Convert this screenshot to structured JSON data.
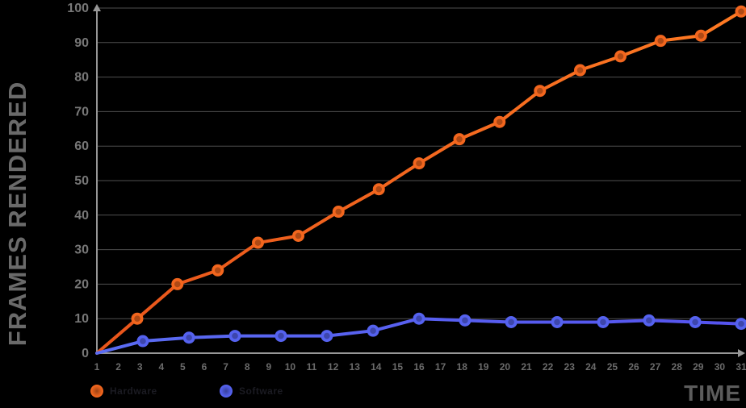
{
  "axes": {
    "y_title": "FRAMES RENDERED",
    "x_title": "TIME"
  },
  "legend": {
    "items": [
      {
        "label": "Hardware",
        "dot_color": "#F2661E"
      },
      {
        "label": "Software",
        "dot_color": "#5562EF"
      }
    ],
    "label_color": "#1b1b22"
  },
  "colors": {
    "background": "#000000",
    "grid_line": "#4f4f4f",
    "axis_line": "#979797",
    "y_tick_text": "#777777",
    "x_tick_text": "#6b6b6b",
    "orange_series": "#F2661E",
    "orange_series_light": "#FF7A23",
    "orange_series_dark": "#E8551B",
    "blue_series": "#5562EF",
    "blue_series_light": "#5A6CF2",
    "blue_series_dark": "#5553EE"
  },
  "chart_data": {
    "type": "line",
    "title": "",
    "xlabel": "TIME",
    "ylabel": "FRAMES RENDERED",
    "x_ticks": [
      1,
      2,
      3,
      4,
      5,
      6,
      7,
      8,
      9,
      10,
      11,
      12,
      13,
      14,
      15,
      16,
      17,
      18,
      19,
      20,
      21,
      22,
      23,
      24,
      25,
      26,
      27,
      28,
      29,
      30,
      31
    ],
    "xlim": [
      1,
      31
    ],
    "ylim": [
      0,
      100
    ],
    "y_tick_step": 10,
    "grid": true,
    "legend_position": "bottom-left",
    "series": [
      {
        "name": "Hardware",
        "color": "#F2661E",
        "x": [
          1,
          2.88,
          4.75,
          6.63,
          8.5,
          10.38,
          12.25,
          14.13,
          16,
          17.88,
          19.75,
          21.63,
          23.5,
          25.38,
          27.25,
          29.13,
          31
        ],
        "values": [
          0,
          10,
          20,
          24,
          32,
          34,
          41,
          47.5,
          55,
          62,
          67,
          76,
          82,
          86,
          90.5,
          92,
          99
        ]
      },
      {
        "name": "Software",
        "color": "#5562EF",
        "x": [
          1,
          3.14,
          5.29,
          7.43,
          9.57,
          11.71,
          13.86,
          16,
          18.14,
          20.29,
          22.43,
          24.57,
          26.71,
          28.86,
          31
        ],
        "values": [
          0,
          3.5,
          4.5,
          5,
          5,
          5,
          6.5,
          10,
          9.5,
          9,
          9,
          9,
          9.5,
          9,
          8.5
        ]
      }
    ]
  }
}
